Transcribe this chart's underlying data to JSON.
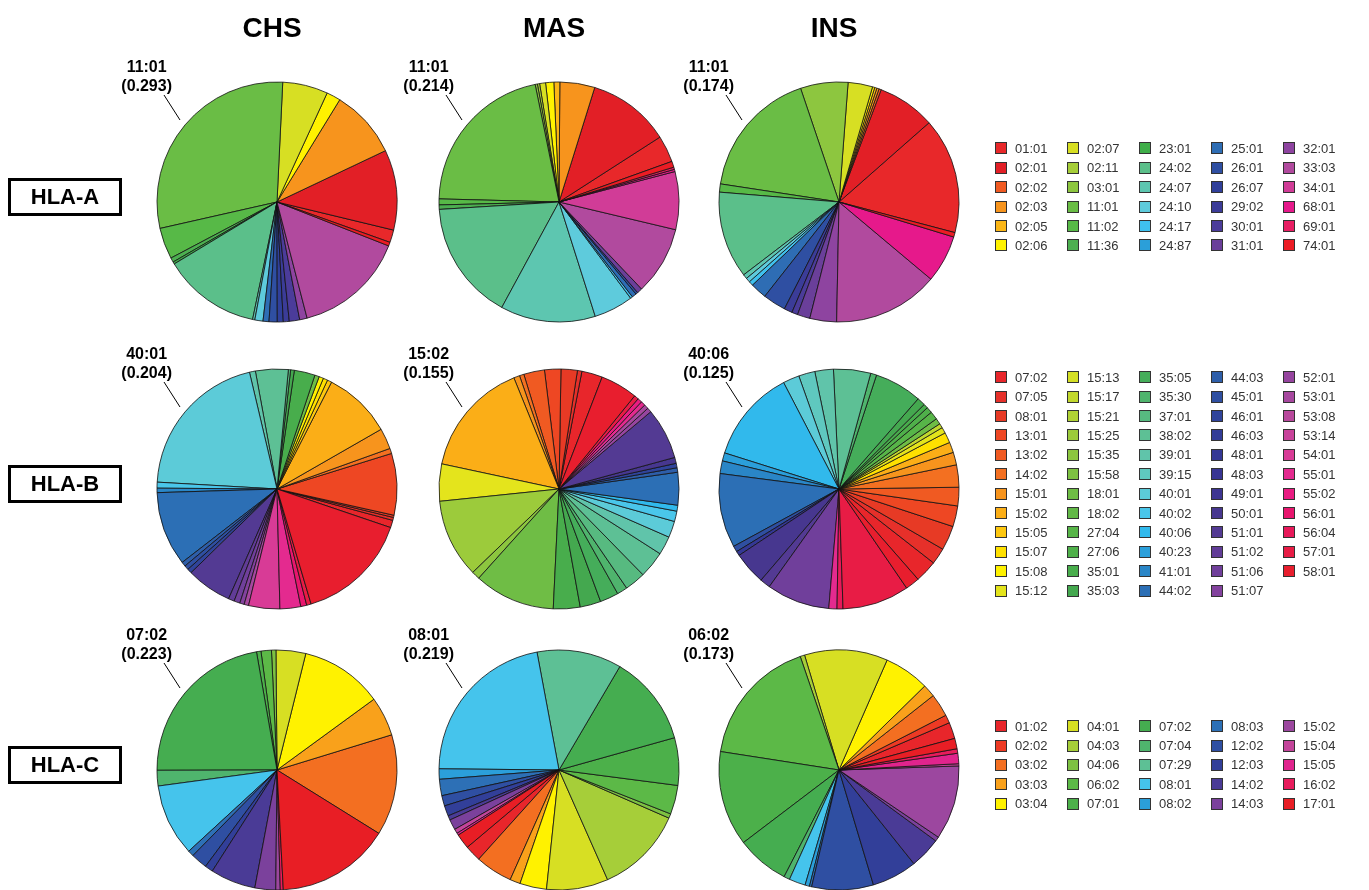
{
  "chart_data": [
    {
      "type": "pie",
      "ylabel": "HLA-A",
      "legend": "right",
      "annotations": [
        {
          "text": "11:01\n(0.293)",
          "x": "11:01"
        },
        {
          "text": "11:01\n(0.214)",
          "x": "11:01"
        },
        {
          "text": "11:01\n(0.174)",
          "x": "11:01"
        }
      ],
      "categories": [
        "01:01",
        "02:01",
        "02:02",
        "02:03",
        "02:05",
        "02:06",
        "02:07",
        "02:11",
        "03:01",
        "11:01",
        "11:02",
        "11:36",
        "23:01",
        "24:02",
        "24:07",
        "24:10",
        "24:17",
        "24:87",
        "25:01",
        "26:01",
        "26:07",
        "29:02",
        "30:01",
        "31:01",
        "32:01",
        "33:03",
        "34:01",
        "68:01",
        "69:01",
        "74:01"
      ],
      "colors": [
        "#e8282a",
        "#e21f26",
        "#f05a22",
        "#f7941d",
        "#fbb616",
        "#fff200",
        "#d7df23",
        "#a6ce39",
        "#8dc63f",
        "#6abd45",
        "#57b947",
        "#4caf50",
        "#3fae49",
        "#5bbf8a",
        "#5dc6b0",
        "#5ecbdc",
        "#3fc1ee",
        "#2b9fd9",
        "#2e6db4",
        "#2f4fa2",
        "#303f9a",
        "#3b3c98",
        "#4b3c9a",
        "#6a3f9a",
        "#8e44a0",
        "#b14a9e",
        "#d13c97",
        "#e6198b",
        "#e81e63",
        "#ec1c24"
      ],
      "series": [
        {
          "name": "CHS",
          "values": [
            0.017,
            0.108,
            null,
            0.092,
            null,
            0.019,
            0.061,
            null,
            null,
            0.293,
            0.042,
            0.006,
            0.003,
            0.131,
            0.003,
            0.011,
            null,
            null,
            0.008,
            0.011,
            0.008,
            0.008,
            0.014,
            null,
            0.01,
            0.15,
            null,
            null,
            null,
            0.005
          ]
        },
        {
          "name": "MAS",
          "values": [
            0.036,
            0.111,
            null,
            0.047,
            0.008,
            0.011,
            0.008,
            0.003,
            0.003,
            0.214,
            0.008,
            0.006,
            null,
            0.161,
            0.128,
            0.053,
            0.003,
            null,
            0.006,
            0.003,
            null,
            null,
            null,
            0.007,
            null,
            0.092,
            0.078,
            0.003,
            0.003,
            0.008
          ]
        },
        {
          "name": "INS",
          "values": [
            0.156,
            0.078,
            0.003,
            0.003,
            0.003,
            0.003,
            0.033,
            null,
            0.064,
            0.174,
            0.011,
            null,
            null,
            0.117,
            0.006,
            0.006,
            0.006,
            null,
            0.022,
            0.031,
            null,
            0.011,
            0.008,
            0.017,
            0.036,
            0.142,
            null,
            0.064,
            null,
            0.006
          ]
        }
      ]
    },
    {
      "type": "pie",
      "ylabel": "HLA-B",
      "legend": "right",
      "annotations": [
        {
          "text": "40:01\n(0.204)",
          "x": "40:01"
        },
        {
          "text": "15:02\n(0.155)",
          "x": "15:02"
        },
        {
          "text": "40:06\n(0.125)",
          "x": "40:06"
        }
      ],
      "categories": [
        "07:02",
        "07:05",
        "08:01",
        "13:01",
        "13:02",
        "14:02",
        "15:01",
        "15:02",
        "15:05",
        "15:07",
        "15:08",
        "15:12",
        "15:13",
        "15:17",
        "15:21",
        "15:25",
        "15:35",
        "15:58",
        "18:01",
        "18:02",
        "27:04",
        "27:06",
        "35:01",
        "35:03",
        "35:05",
        "35:30",
        "37:01",
        "38:02",
        "39:01",
        "39:15",
        "40:01",
        "40:02",
        "40:06",
        "40:23",
        "41:01",
        "44:02",
        "44:03",
        "45:01",
        "46:01",
        "46:03",
        "48:01",
        "48:03",
        "49:01",
        "50:01",
        "51:01",
        "51:02",
        "51:06",
        "51:07",
        "52:01",
        "53:01",
        "53:08",
        "53:14",
        "54:01",
        "55:01",
        "55:02",
        "56:01",
        "56:04",
        "57:01",
        "58:01"
      ],
      "colors": [
        "#e8262b",
        "#e6302a",
        "#e73a25",
        "#ee4723",
        "#f05a22",
        "#f37021",
        "#f7941d",
        "#fbae17",
        "#fdc70f",
        "#ffe000",
        "#fff200",
        "#e4e41c",
        "#d4df25",
        "#c2d82e",
        "#b0d235",
        "#9ccb3b",
        "#8cc63f",
        "#7dc142",
        "#6fbd45",
        "#62b847",
        "#57b548",
        "#4fb04a",
        "#48ad4c",
        "#44a84f",
        "#45ad5a",
        "#4fb46d",
        "#57ba80",
        "#5dc095",
        "#60c4aa",
        "#5fc8bf",
        "#5ccbd8",
        "#4ac6ea",
        "#31b9ec",
        "#2b9fda",
        "#2a86c7",
        "#2c6fb5",
        "#2e5ea9",
        "#2f4fa1",
        "#30449b",
        "#323c97",
        "#343895",
        "#383593",
        "#3d3592",
        "#47378f",
        "#533a93",
        "#613c97",
        "#703f9b",
        "#83429e",
        "#96459f",
        "#a7489f",
        "#b8489c",
        "#c8429a",
        "#d83b96",
        "#e42a8f",
        "#e91c82",
        "#e8166e",
        "#e8195a",
        "#e81c45",
        "#e81e2e"
      ],
      "series": [
        {
          "values": [
            0.01,
            0.004,
            0.003,
            0.083,
            null,
            0.007,
            0.028,
            0.092,
            0.006,
            0.006,
            0.006,
            null,
            null,
            null,
            null,
            null,
            null,
            null,
            0.006,
            null,
            null,
            null,
            0.028,
            0.005,
            null,
            null,
            0.003,
            0.044,
            0.008,
            null,
            0.204,
            0.008,
            null,
            null,
            0.006,
            0.1,
            0.006,
            0.006,
            0.006,
            null,
            null,
            null,
            null,
            null,
            0.061,
            0.008,
            0.008,
            0.006,
            null,
            0.006,
            null,
            null,
            0.042,
            0.028,
            null,
            0.008,
            null,
            0.006,
            0.152
          ]
        },
        {
          "values": [
            0.028,
            0.006,
            0.022,
            0.022,
            0.028,
            0.006,
            0.008,
            0.155,
            null,
            null,
            null,
            0.05,
            null,
            null,
            null,
            0.106,
            0.011,
            null,
            0.109,
            null,
            null,
            null,
            0.036,
            0.028,
            0.025,
            0.014,
            0.028,
            0.036,
            0.025,
            null,
            0.022,
            0.014,
            0.008,
            null,
            null,
            0.044,
            0.006,
            null,
            0.006,
            null,
            null,
            null,
            null,
            0.008,
            0.069,
            null,
            null,
            null,
            0.006,
            0.006,
            null,
            null,
            null,
            0.006,
            0.006,
            null,
            null,
            0.006,
            0.05
          ]
        },
        {
          "values": [
            0.03,
            0.022,
            0.033,
            0.028,
            0.025,
            0.03,
            0.017,
            0.014,
            null,
            0.014,
            null,
            0.008,
            null,
            0.006,
            null,
            null,
            null,
            null,
            0.008,
            null,
            0.011,
            0.008,
            0.006,
            0.011,
            0.064,
            0.008,
            null,
            0.05,
            0.025,
            0.022,
            0.022,
            null,
            0.125,
            0.011,
            0.017,
            0.1,
            null,
            0.008,
            null,
            null,
            0.006,
            null,
            null,
            0.044,
            0.014,
            null,
            0.085,
            null,
            null,
            null,
            null,
            null,
            null,
            0.011,
            null,
            null,
            0.008,
            0.09,
            0.019
          ]
        }
      ]
    },
    {
      "type": "pie",
      "ylabel": "HLA-C",
      "legend": "right",
      "annotations": [
        {
          "text": "07:02\n(0.223)",
          "x": "07:02"
        },
        {
          "text": "08:01\n(0.219)",
          "x": "08:01"
        },
        {
          "text": "06:02\n(0.173)",
          "x": "06:02"
        }
      ],
      "categories": [
        "01:02",
        "02:02",
        "03:02",
        "03:03",
        "03:04",
        "04:01",
        "04:03",
        "04:06",
        "06:02",
        "07:01",
        "07:02",
        "07:04",
        "07:29",
        "08:01",
        "08:02",
        "08:03",
        "12:02",
        "12:03",
        "14:02",
        "14:03",
        "15:02",
        "15:04",
        "15:05",
        "16:02",
        "17:01"
      ],
      "colors": [
        "#e8262b",
        "#ed3a24",
        "#f36f21",
        "#f9a11b",
        "#fff200",
        "#d7df23",
        "#a6ce39",
        "#7dc142",
        "#5cb947",
        "#4cb04a",
        "#45ad50",
        "#4fb46d",
        "#5dc095",
        "#45c4ec",
        "#2b9fda",
        "#2d70b6",
        "#2f4fa2",
        "#323f99",
        "#4a3b96",
        "#7b419c",
        "#9c479f",
        "#c3449a",
        "#e0248d",
        "#e81c5c",
        "#e81e25"
      ],
      "series": [
        {
          "values": [
            null,
            null,
            0.136,
            0.053,
            0.111,
            0.04,
            null,
            0.006,
            0.014,
            0.006,
            0.223,
            0.021,
            null,
            0.097,
            null,
            0.008,
            0.022,
            0.011,
            0.061,
            0.028,
            0.006,
            null,
            null,
            0.004,
            0.153
          ]
        },
        {
          "values": [
            0.022,
            null,
            0.05,
            0.014,
            0.036,
            0.083,
            0.118,
            0.006,
            0.039,
            0.064,
            0.122,
            null,
            0.114,
            0.219,
            0.014,
            0.022,
            0.014,
            0.014,
            0.006,
            0.014,
            null,
            0.006,
            0.003,
            null,
            0.02
          ]
        },
        {
          "values": [
            0.022,
            0.011,
            0.031,
            0.017,
            0.061,
            0.112,
            0.006,
            null,
            0.173,
            0.128,
            0.071,
            0.008,
            null,
            0.022,
            0.006,
            0.003,
            0.083,
            0.061,
            0.042,
            0.006,
            0.1,
            0.003,
            0.014,
            0.006,
            0.014
          ]
        }
      ]
    }
  ]
}
